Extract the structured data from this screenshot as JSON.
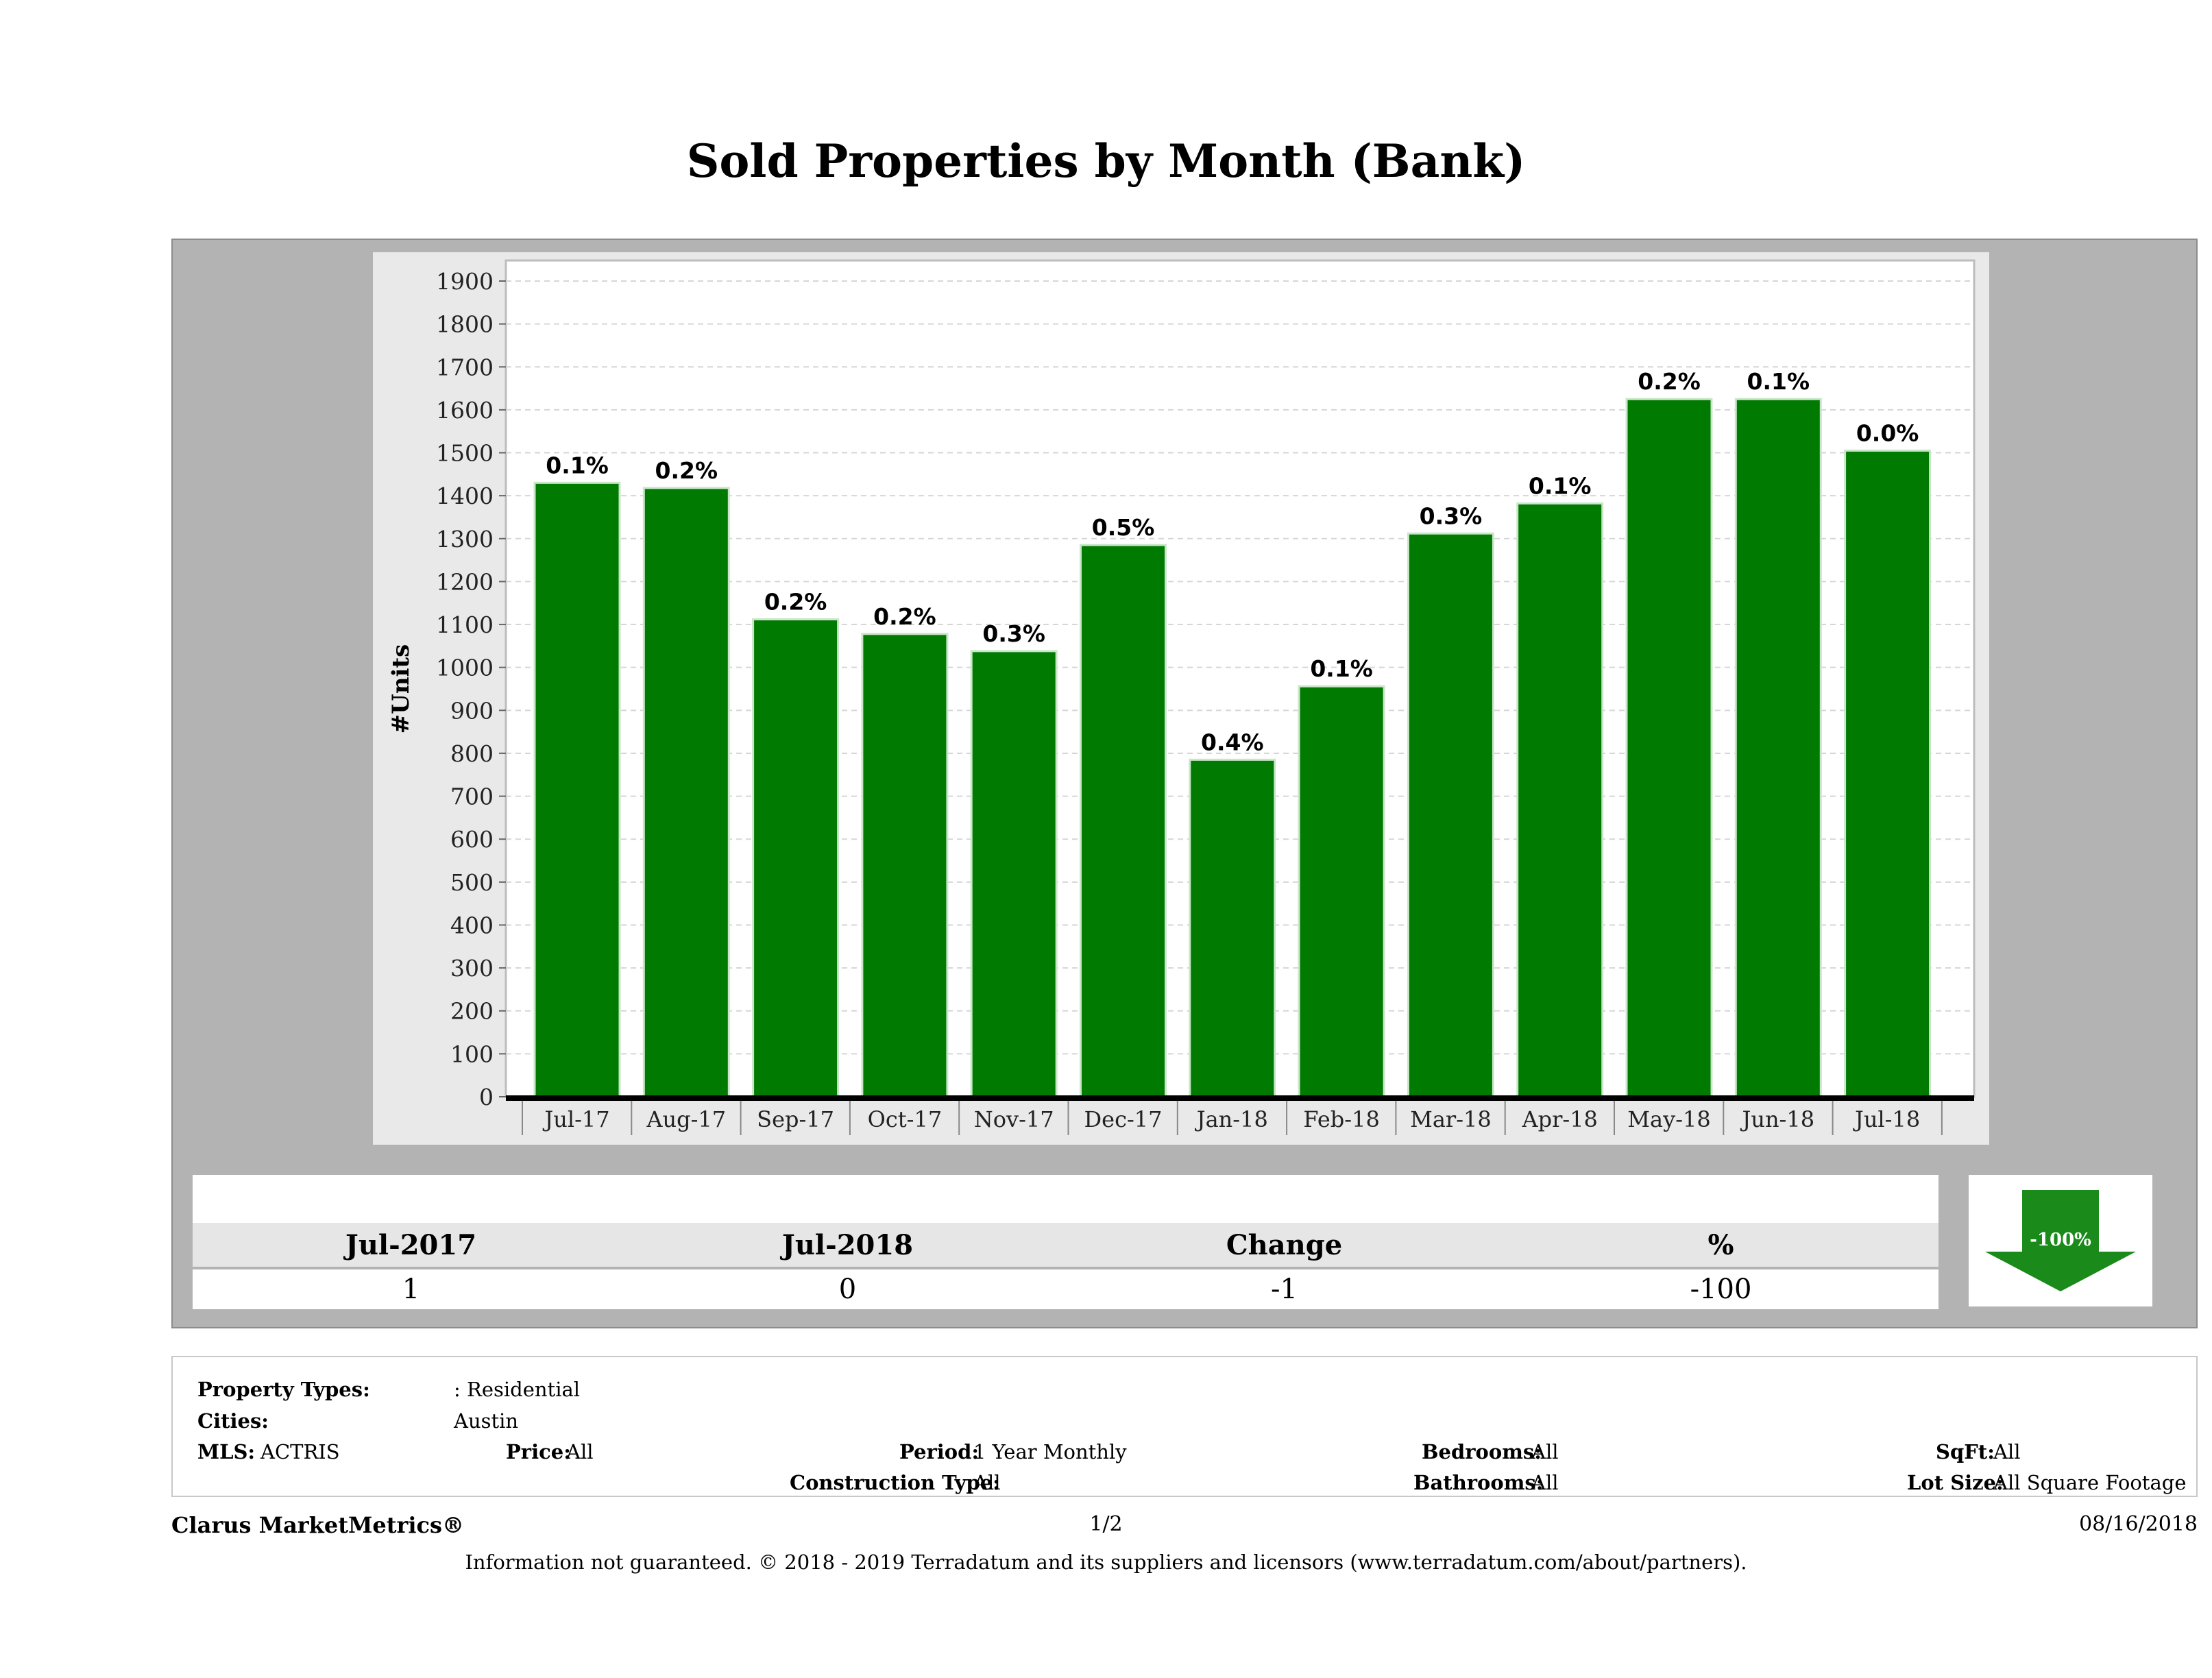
{
  "title": "Sold Properties by Month (Bank)",
  "chart_data": {
    "type": "bar",
    "title": "Sold Properties by Month (Bank)",
    "ylabel": "#Units",
    "xlabel": "",
    "ylim": [
      0,
      1900
    ],
    "yticks": [
      0,
      100,
      200,
      300,
      400,
      500,
      600,
      700,
      800,
      900,
      1000,
      1100,
      1200,
      1300,
      1400,
      1500,
      1600,
      1700,
      1800,
      1900
    ],
    "categories": [
      "Jul-17",
      "Aug-17",
      "Sep-17",
      "Oct-17",
      "Nov-17",
      "Dec-17",
      "Jan-18",
      "Feb-18",
      "Mar-18",
      "Apr-18",
      "May-18",
      "Jun-18",
      "Jul-18"
    ],
    "values": [
      1430,
      1418,
      1112,
      1078,
      1038,
      1285,
      785,
      956,
      1312,
      1382,
      1625,
      1625,
      1505
    ],
    "data_labels": [
      "0.1%",
      "0.2%",
      "0.2%",
      "0.2%",
      "0.3%",
      "0.5%",
      "0.4%",
      "0.1%",
      "0.3%",
      "0.1%",
      "0.2%",
      "0.1%",
      "0.0%"
    ],
    "grid": true,
    "bar_color": "#007a00"
  },
  "summary": {
    "headers": [
      "Jul-2017",
      "Jul-2018",
      "Change",
      "%"
    ],
    "values": [
      "1",
      "0",
      "-1",
      "-100"
    ],
    "badge": "-100%",
    "badge_color": "#1a8a1a"
  },
  "filters": {
    "property_types_label": "Property Types:",
    "property_types_value": ": Residential",
    "cities_label": "Cities:",
    "cities_value": "Austin",
    "mls_label": "MLS:",
    "mls_value": "ACTRIS",
    "price_label": "Price:",
    "price_value": "All",
    "period_label": "Period:",
    "period_value": "1 Year Monthly",
    "construction_label": "Construction Type:",
    "construction_value": "All",
    "bedrooms_label": "Bedrooms:",
    "bedrooms_value": "All",
    "bathrooms_label": "Bathrooms:",
    "bathrooms_value": "All",
    "sqft_label": "SqFt:",
    "sqft_value": "All",
    "lotsize_label": "Lot Size:",
    "lotsize_value": "All Square Footage"
  },
  "footer": {
    "brand": "Clarus MarketMetrics®",
    "page": "1/2",
    "date": "08/16/2018",
    "disclaimer": "Information not guaranteed. © 2018 - 2019 Terradatum and its suppliers and licensors (www.terradatum.com/about/partners)."
  }
}
